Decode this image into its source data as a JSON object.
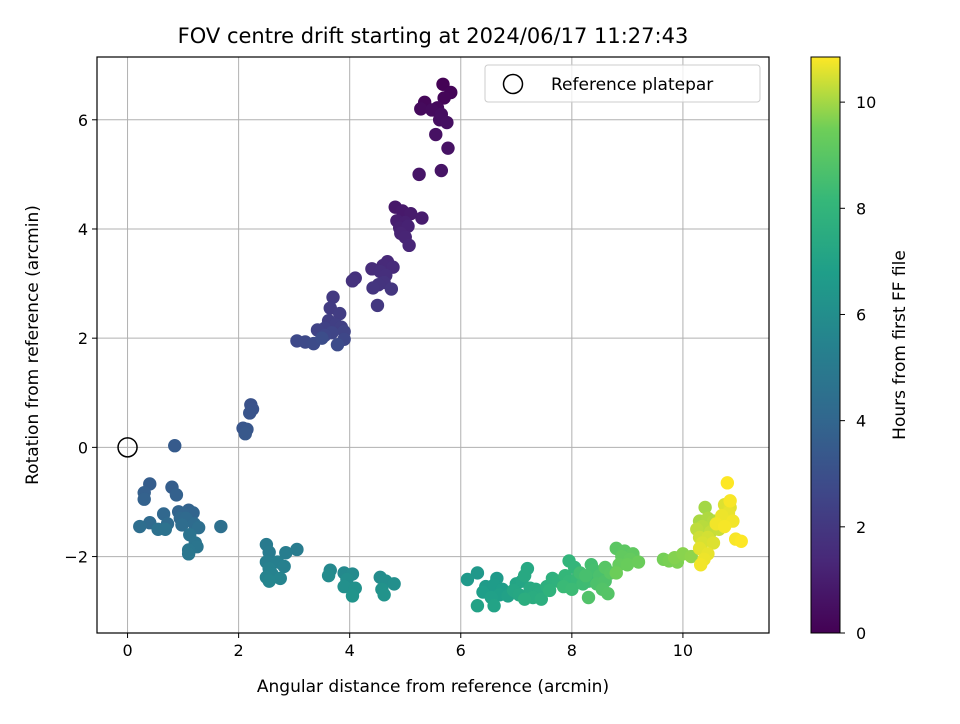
{
  "chart_data": {
    "type": "scatter",
    "title": "FOV centre drift starting at 2024/06/17 11:27:43",
    "xlabel": "Angular distance from reference (arcmin)",
    "ylabel": "Rotation from reference (arcmin)",
    "xlim": [
      -0.55,
      11.55
    ],
    "ylim": [
      -3.4,
      7.15
    ],
    "xticks": [
      "0",
      "2",
      "4",
      "6",
      "8",
      "10"
    ],
    "yticks": [
      "−2",
      "0",
      "2",
      "4",
      "6"
    ],
    "grid": true,
    "legend": {
      "placement": "top-right",
      "entries": [
        "Reference platepar"
      ]
    },
    "reference_point": {
      "x": 0,
      "y": 0,
      "label": "Reference platepar"
    },
    "colorbar": {
      "label": "Hours from first FF file",
      "range": [
        0,
        10.85
      ],
      "ticks": [
        "0",
        "2",
        "4",
        "6",
        "8",
        "10"
      ],
      "colormap": "viridis"
    },
    "points": [
      {
        "x": 5.68,
        "y": 6.65,
        "h": 0.05
      },
      {
        "x": 5.82,
        "y": 6.5,
        "h": 0.1
      },
      {
        "x": 5.7,
        "y": 6.4,
        "h": 0.15
      },
      {
        "x": 5.35,
        "y": 6.32,
        "h": 0.2
      },
      {
        "x": 5.58,
        "y": 6.22,
        "h": 0.25
      },
      {
        "x": 5.28,
        "y": 6.2,
        "h": 0.3
      },
      {
        "x": 5.48,
        "y": 6.18,
        "h": 0.35
      },
      {
        "x": 5.65,
        "y": 6.1,
        "h": 0.4
      },
      {
        "x": 5.62,
        "y": 6.0,
        "h": 0.45
      },
      {
        "x": 5.75,
        "y": 5.95,
        "h": 0.5
      },
      {
        "x": 5.55,
        "y": 5.73,
        "h": 0.55
      },
      {
        "x": 5.77,
        "y": 5.48,
        "h": 0.6
      },
      {
        "x": 5.65,
        "y": 5.07,
        "h": 0.65
      },
      {
        "x": 5.25,
        "y": 5.0,
        "h": 0.7
      },
      {
        "x": 4.82,
        "y": 4.4,
        "h": 0.8
      },
      {
        "x": 4.95,
        "y": 4.33,
        "h": 0.85
      },
      {
        "x": 5.1,
        "y": 4.28,
        "h": 0.9
      },
      {
        "x": 5.3,
        "y": 4.2,
        "h": 0.95
      },
      {
        "x": 4.85,
        "y": 4.15,
        "h": 1.0
      },
      {
        "x": 5.0,
        "y": 4.12,
        "h": 1.05
      },
      {
        "x": 4.9,
        "y": 4.02,
        "h": 1.1
      },
      {
        "x": 5.05,
        "y": 4.05,
        "h": 1.15
      },
      {
        "x": 4.92,
        "y": 3.92,
        "h": 1.2
      },
      {
        "x": 5.0,
        "y": 3.85,
        "h": 1.25
      },
      {
        "x": 5.07,
        "y": 3.7,
        "h": 1.3
      },
      {
        "x": 4.68,
        "y": 3.4,
        "h": 1.4
      },
      {
        "x": 4.6,
        "y": 3.33,
        "h": 1.45
      },
      {
        "x": 4.78,
        "y": 3.3,
        "h": 1.5
      },
      {
        "x": 4.4,
        "y": 3.27,
        "h": 1.55
      },
      {
        "x": 4.55,
        "y": 3.22,
        "h": 1.6
      },
      {
        "x": 4.65,
        "y": 3.15,
        "h": 1.65
      },
      {
        "x": 4.1,
        "y": 3.1,
        "h": 1.7
      },
      {
        "x": 4.05,
        "y": 3.05,
        "h": 1.75
      },
      {
        "x": 4.62,
        "y": 3.02,
        "h": 1.8
      },
      {
        "x": 4.52,
        "y": 2.98,
        "h": 1.85
      },
      {
        "x": 4.42,
        "y": 2.92,
        "h": 1.9
      },
      {
        "x": 4.75,
        "y": 2.9,
        "h": 1.95
      },
      {
        "x": 4.5,
        "y": 2.6,
        "h": 2.0
      },
      {
        "x": 3.7,
        "y": 2.75,
        "h": 2.1
      },
      {
        "x": 3.65,
        "y": 2.55,
        "h": 2.15
      },
      {
        "x": 3.82,
        "y": 2.45,
        "h": 2.2
      },
      {
        "x": 3.62,
        "y": 2.32,
        "h": 2.25
      },
      {
        "x": 3.75,
        "y": 2.25,
        "h": 2.3
      },
      {
        "x": 3.85,
        "y": 2.2,
        "h": 2.35
      },
      {
        "x": 3.55,
        "y": 2.18,
        "h": 2.4
      },
      {
        "x": 3.42,
        "y": 2.15,
        "h": 2.45
      },
      {
        "x": 3.9,
        "y": 2.12,
        "h": 2.5
      },
      {
        "x": 3.68,
        "y": 2.1,
        "h": 2.55
      },
      {
        "x": 3.55,
        "y": 2.05,
        "h": 2.6
      },
      {
        "x": 3.9,
        "y": 1.98,
        "h": 2.65
      },
      {
        "x": 3.05,
        "y": 1.95,
        "h": 2.7
      },
      {
        "x": 3.2,
        "y": 1.93,
        "h": 2.75
      },
      {
        "x": 3.35,
        "y": 1.9,
        "h": 2.8
      },
      {
        "x": 3.78,
        "y": 1.88,
        "h": 2.85
      },
      {
        "x": 3.5,
        "y": 2.0,
        "h": 2.9
      },
      {
        "x": 2.22,
        "y": 0.78,
        "h": 3.1
      },
      {
        "x": 2.25,
        "y": 0.7,
        "h": 3.15
      },
      {
        "x": 2.2,
        "y": 0.63,
        "h": 3.2
      },
      {
        "x": 2.08,
        "y": 0.35,
        "h": 3.25
      },
      {
        "x": 2.15,
        "y": 0.33,
        "h": 3.3
      },
      {
        "x": 2.12,
        "y": 0.25,
        "h": 3.35
      },
      {
        "x": 0.85,
        "y": 0.03,
        "h": 3.5
      },
      {
        "x": 0.4,
        "y": -0.67,
        "h": 3.6
      },
      {
        "x": 0.8,
        "y": -0.73,
        "h": 3.65
      },
      {
        "x": 0.3,
        "y": -0.83,
        "h": 3.7
      },
      {
        "x": 0.88,
        "y": -0.87,
        "h": 3.75
      },
      {
        "x": 0.3,
        "y": -0.95,
        "h": 3.8
      },
      {
        "x": 1.1,
        "y": -1.15,
        "h": 3.85
      },
      {
        "x": 0.92,
        "y": -1.18,
        "h": 3.9
      },
      {
        "x": 1.18,
        "y": -1.2,
        "h": 3.95
      },
      {
        "x": 1.0,
        "y": -1.22,
        "h": 4.0
      },
      {
        "x": 0.65,
        "y": -1.22,
        "h": 4.05
      },
      {
        "x": 0.95,
        "y": -1.3,
        "h": 4.1
      },
      {
        "x": 1.05,
        "y": -1.3,
        "h": 4.15
      },
      {
        "x": 0.4,
        "y": -1.38,
        "h": 4.2
      },
      {
        "x": 0.72,
        "y": -1.4,
        "h": 4.25
      },
      {
        "x": 1.2,
        "y": -1.4,
        "h": 4.3
      },
      {
        "x": 0.98,
        "y": -1.42,
        "h": 4.35
      },
      {
        "x": 0.22,
        "y": -1.45,
        "h": 4.4
      },
      {
        "x": 1.28,
        "y": -1.47,
        "h": 4.45
      },
      {
        "x": 1.68,
        "y": -1.45,
        "h": 4.5
      },
      {
        "x": 0.55,
        "y": -1.5,
        "h": 4.55
      },
      {
        "x": 0.68,
        "y": -1.5,
        "h": 4.6
      },
      {
        "x": 1.12,
        "y": -1.6,
        "h": 4.65
      },
      {
        "x": 1.22,
        "y": -1.75,
        "h": 4.7
      },
      {
        "x": 1.25,
        "y": -1.82,
        "h": 4.75
      },
      {
        "x": 1.1,
        "y": -1.88,
        "h": 4.8
      },
      {
        "x": 1.1,
        "y": -1.95,
        "h": 4.85
      },
      {
        "x": 2.5,
        "y": -1.78,
        "h": 5.0
      },
      {
        "x": 2.55,
        "y": -1.92,
        "h": 5.05
      },
      {
        "x": 3.05,
        "y": -1.87,
        "h": 5.1
      },
      {
        "x": 2.85,
        "y": -1.93,
        "h": 5.15
      },
      {
        "x": 2.5,
        "y": -2.1,
        "h": 5.2
      },
      {
        "x": 2.7,
        "y": -2.1,
        "h": 5.25
      },
      {
        "x": 2.82,
        "y": -2.18,
        "h": 5.3
      },
      {
        "x": 2.55,
        "y": -2.22,
        "h": 5.35
      },
      {
        "x": 2.6,
        "y": -2.32,
        "h": 5.4
      },
      {
        "x": 2.5,
        "y": -2.38,
        "h": 5.45
      },
      {
        "x": 2.75,
        "y": -2.4,
        "h": 5.5
      },
      {
        "x": 2.55,
        "y": -2.45,
        "h": 5.55
      },
      {
        "x": 3.65,
        "y": -2.25,
        "h": 5.7
      },
      {
        "x": 3.9,
        "y": -2.3,
        "h": 5.75
      },
      {
        "x": 4.05,
        "y": -2.32,
        "h": 5.8
      },
      {
        "x": 3.62,
        "y": -2.35,
        "h": 5.85
      },
      {
        "x": 4.55,
        "y": -2.38,
        "h": 5.9
      },
      {
        "x": 3.95,
        "y": -2.42,
        "h": 5.95
      },
      {
        "x": 4.65,
        "y": -2.45,
        "h": 6.0
      },
      {
        "x": 4.8,
        "y": -2.5,
        "h": 6.05
      },
      {
        "x": 3.9,
        "y": -2.55,
        "h": 6.1
      },
      {
        "x": 4.1,
        "y": -2.58,
        "h": 6.15
      },
      {
        "x": 4.58,
        "y": -2.6,
        "h": 6.2
      },
      {
        "x": 4.62,
        "y": -2.7,
        "h": 6.25
      },
      {
        "x": 4.05,
        "y": -2.72,
        "h": 6.3
      },
      {
        "x": 6.3,
        "y": -2.3,
        "h": 6.5
      },
      {
        "x": 6.12,
        "y": -2.42,
        "h": 6.55
      },
      {
        "x": 6.65,
        "y": -2.4,
        "h": 6.6
      },
      {
        "x": 6.45,
        "y": -2.55,
        "h": 6.65
      },
      {
        "x": 6.6,
        "y": -2.52,
        "h": 6.7
      },
      {
        "x": 6.75,
        "y": -2.6,
        "h": 6.75
      },
      {
        "x": 6.4,
        "y": -2.65,
        "h": 6.8
      },
      {
        "x": 6.7,
        "y": -2.7,
        "h": 6.85
      },
      {
        "x": 6.55,
        "y": -2.75,
        "h": 6.9
      },
      {
        "x": 6.85,
        "y": -2.72,
        "h": 6.95
      },
      {
        "x": 6.3,
        "y": -2.9,
        "h": 7.0
      },
      {
        "x": 6.6,
        "y": -2.9,
        "h": 7.05
      },
      {
        "x": 7.0,
        "y": -2.5,
        "h": 7.1
      },
      {
        "x": 7.1,
        "y": -2.45,
        "h": 7.15
      },
      {
        "x": 6.95,
        "y": -2.62,
        "h": 7.2
      },
      {
        "x": 7.05,
        "y": -2.7,
        "h": 7.25
      },
      {
        "x": 7.2,
        "y": -2.22,
        "h": 7.3
      },
      {
        "x": 7.15,
        "y": -2.35,
        "h": 7.35
      },
      {
        "x": 7.25,
        "y": -2.58,
        "h": 7.4
      },
      {
        "x": 7.35,
        "y": -2.6,
        "h": 7.45
      },
      {
        "x": 7.4,
        "y": -2.68,
        "h": 7.5
      },
      {
        "x": 7.3,
        "y": -2.75,
        "h": 7.55
      },
      {
        "x": 7.15,
        "y": -2.78,
        "h": 7.6
      },
      {
        "x": 7.45,
        "y": -2.78,
        "h": 7.65
      },
      {
        "x": 7.55,
        "y": -2.55,
        "h": 7.7
      },
      {
        "x": 7.65,
        "y": -2.4,
        "h": 7.75
      },
      {
        "x": 7.75,
        "y": -2.45,
        "h": 7.8
      },
      {
        "x": 7.6,
        "y": -2.62,
        "h": 7.85
      },
      {
        "x": 7.95,
        "y": -2.08,
        "h": 8.0
      },
      {
        "x": 8.05,
        "y": -2.2,
        "h": 8.05
      },
      {
        "x": 7.88,
        "y": -2.35,
        "h": 8.1
      },
      {
        "x": 7.95,
        "y": -2.45,
        "h": 8.15
      },
      {
        "x": 8.1,
        "y": -2.4,
        "h": 8.2
      },
      {
        "x": 7.85,
        "y": -2.55,
        "h": 8.25
      },
      {
        "x": 8.0,
        "y": -2.6,
        "h": 8.3
      },
      {
        "x": 8.2,
        "y": -2.5,
        "h": 8.35
      },
      {
        "x": 8.3,
        "y": -2.45,
        "h": 8.4
      },
      {
        "x": 8.15,
        "y": -2.3,
        "h": 8.45
      },
      {
        "x": 8.35,
        "y": -2.15,
        "h": 8.5
      },
      {
        "x": 8.4,
        "y": -2.25,
        "h": 8.55
      },
      {
        "x": 8.25,
        "y": -2.35,
        "h": 8.6
      },
      {
        "x": 8.5,
        "y": -2.35,
        "h": 8.65
      },
      {
        "x": 8.45,
        "y": -2.5,
        "h": 8.7
      },
      {
        "x": 8.6,
        "y": -2.45,
        "h": 8.75
      },
      {
        "x": 8.3,
        "y": -2.75,
        "h": 8.8
      },
      {
        "x": 8.55,
        "y": -2.6,
        "h": 8.85
      },
      {
        "x": 8.65,
        "y": -2.68,
        "h": 8.9
      },
      {
        "x": 8.6,
        "y": -2.2,
        "h": 8.95
      },
      {
        "x": 8.7,
        "y": -2.3,
        "h": 9.0
      },
      {
        "x": 8.8,
        "y": -1.85,
        "h": 9.05
      },
      {
        "x": 8.95,
        "y": -1.9,
        "h": 9.1
      },
      {
        "x": 9.1,
        "y": -1.95,
        "h": 9.15
      },
      {
        "x": 8.9,
        "y": -2.0,
        "h": 9.2
      },
      {
        "x": 9.05,
        "y": -2.05,
        "h": 9.25
      },
      {
        "x": 8.85,
        "y": -2.15,
        "h": 9.3
      },
      {
        "x": 9.0,
        "y": -2.15,
        "h": 9.35
      },
      {
        "x": 9.2,
        "y": -2.1,
        "h": 9.4
      },
      {
        "x": 8.8,
        "y": -2.3,
        "h": 9.45
      },
      {
        "x": 9.65,
        "y": -2.05,
        "h": 9.55
      },
      {
        "x": 9.75,
        "y": -2.08,
        "h": 9.6
      },
      {
        "x": 9.9,
        "y": -2.1,
        "h": 9.65
      },
      {
        "x": 9.85,
        "y": -2.02,
        "h": 9.7
      },
      {
        "x": 10.0,
        "y": -1.95,
        "h": 9.75
      },
      {
        "x": 10.15,
        "y": -2.0,
        "h": 9.8
      },
      {
        "x": 10.4,
        "y": -1.1,
        "h": 10.0
      },
      {
        "x": 10.3,
        "y": -1.35,
        "h": 10.05
      },
      {
        "x": 10.45,
        "y": -1.3,
        "h": 10.1
      },
      {
        "x": 10.55,
        "y": -1.35,
        "h": 10.15
      },
      {
        "x": 10.35,
        "y": -1.45,
        "h": 10.2
      },
      {
        "x": 10.25,
        "y": -1.5,
        "h": 10.25
      },
      {
        "x": 10.5,
        "y": -1.55,
        "h": 10.3
      },
      {
        "x": 10.65,
        "y": -1.5,
        "h": 10.35
      },
      {
        "x": 10.3,
        "y": -1.65,
        "h": 10.4
      },
      {
        "x": 10.45,
        "y": -1.65,
        "h": 10.45
      },
      {
        "x": 10.35,
        "y": -1.75,
        "h": 10.5
      },
      {
        "x": 10.55,
        "y": -1.75,
        "h": 10.55
      },
      {
        "x": 10.3,
        "y": -1.85,
        "h": 10.6
      },
      {
        "x": 10.45,
        "y": -1.95,
        "h": 10.65
      },
      {
        "x": 10.38,
        "y": -2.05,
        "h": 10.7
      },
      {
        "x": 10.32,
        "y": -2.15,
        "h": 10.75
      },
      {
        "x": 10.75,
        "y": -1.05,
        "h": 10.55
      },
      {
        "x": 10.85,
        "y": -1.1,
        "h": 10.6
      },
      {
        "x": 10.82,
        "y": -1.2,
        "h": 10.65
      },
      {
        "x": 10.7,
        "y": -1.25,
        "h": 10.7
      },
      {
        "x": 10.9,
        "y": -1.35,
        "h": 10.75
      },
      {
        "x": 10.6,
        "y": -1.4,
        "h": 10.75
      },
      {
        "x": 10.75,
        "y": -1.45,
        "h": 10.78
      },
      {
        "x": 10.85,
        "y": -0.98,
        "h": 10.8
      },
      {
        "x": 10.8,
        "y": -0.65,
        "h": 10.85
      },
      {
        "x": 10.95,
        "y": -1.68,
        "h": 10.8
      },
      {
        "x": 11.05,
        "y": -1.72,
        "h": 10.85
      }
    ]
  }
}
